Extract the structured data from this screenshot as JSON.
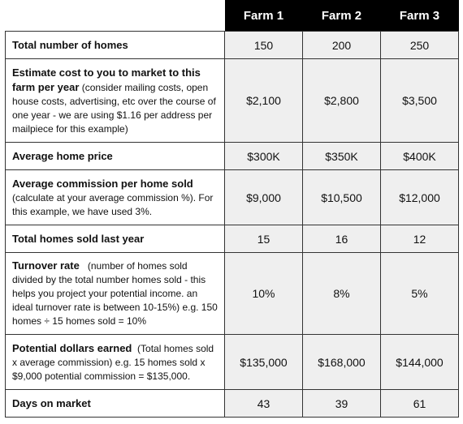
{
  "headers": [
    "",
    "Farm 1",
    "Farm 2",
    "Farm 3"
  ],
  "rows": [
    {
      "label": "Total number of homes",
      "note": "",
      "values": [
        "150",
        "200",
        "250"
      ]
    },
    {
      "label": "Estimate cost to you to market to this farm per year",
      "note": "(consider mailing costs, open house costs, advertising, etc over the course of one year - we are using $1.16 per address per mailpiece for this example)",
      "values": [
        "$2,100",
        "$2,800",
        "$3,500"
      ]
    },
    {
      "label": "Average home price",
      "note": "",
      "values": [
        "$300K",
        "$350K",
        "$400K"
      ]
    },
    {
      "label": "Average commission per home sold",
      "note": "(calculate at your average commission %). For this example, we have used 3%.",
      "values": [
        "$9,000",
        "$10,500",
        "$12,000"
      ]
    },
    {
      "label": "Total homes sold last year",
      "note": "",
      "values": [
        "15",
        "16",
        "12"
      ]
    },
    {
      "label": "Turnover rate",
      "note": "(number of homes sold divided by the total number homes sold - this helps you project your potential income. an ideal turnover rate is between 10-15%) e.g. 150 homes ÷ 15 homes sold = 10%",
      "values": [
        "10%",
        "8%",
        "5%"
      ]
    },
    {
      "label": "Potential dollars earned",
      "note": "(Total homes sold x average commission) e.g. 15 homes sold x $9,000 potential commission = $135,000.",
      "values": [
        "$135,000",
        "$168,000",
        "$144,000"
      ]
    },
    {
      "label": "Days on market",
      "note": "",
      "values": [
        "43",
        "39",
        "61"
      ]
    }
  ]
}
